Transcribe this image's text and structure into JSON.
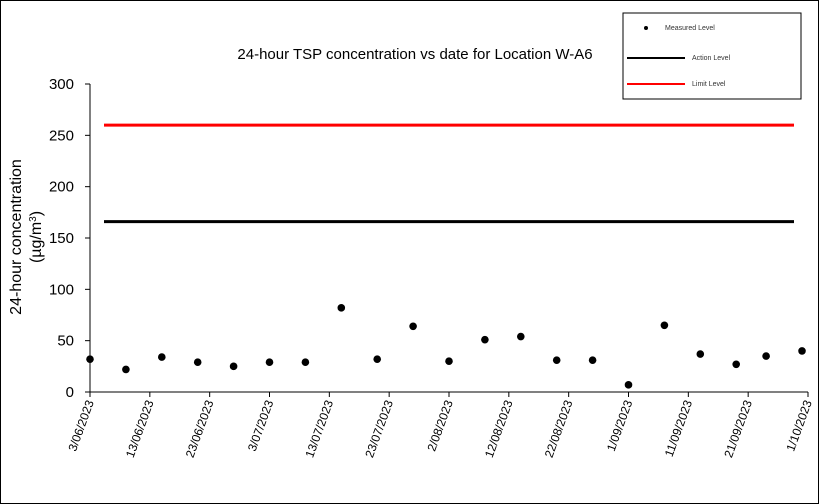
{
  "chart_data": {
    "type": "scatter",
    "title": "24-hour TSP concentration vs date for Location W-A6",
    "ylabel_line1": "24-hour concentration",
    "ylabel_line2_prefix": "(µg/m",
    "ylabel_line2_sup": "3",
    "ylabel_line2_suffix": ")",
    "xlabel": "",
    "ylim": [
      0,
      300
    ],
    "yticks": [
      0,
      50,
      100,
      150,
      200,
      250,
      300
    ],
    "xlim": [
      "2023-06-03",
      "2023-10-01"
    ],
    "xticks": [
      "3/06/2023",
      "13/06/2023",
      "23/06/2023",
      "3/07/2023",
      "13/07/2023",
      "23/07/2023",
      "2/08/2023",
      "12/08/2023",
      "22/08/2023",
      "1/09/2023",
      "11/09/2023",
      "21/09/2023",
      "1/10/2023"
    ],
    "grid": false,
    "legend_position": "top-right",
    "series": [
      {
        "name": "Measured Level",
        "kind": "points",
        "color": "#000000",
        "points": [
          {
            "x": "2023-06-03",
            "y": 32
          },
          {
            "x": "2023-06-09",
            "y": 22
          },
          {
            "x": "2023-06-15",
            "y": 34
          },
          {
            "x": "2023-06-21",
            "y": 29
          },
          {
            "x": "2023-06-27",
            "y": 25
          },
          {
            "x": "2023-07-03",
            "y": 29
          },
          {
            "x": "2023-07-09",
            "y": 29
          },
          {
            "x": "2023-07-15",
            "y": 82
          },
          {
            "x": "2023-07-21",
            "y": 32
          },
          {
            "x": "2023-07-27",
            "y": 64
          },
          {
            "x": "2023-08-02",
            "y": 30
          },
          {
            "x": "2023-08-08",
            "y": 51
          },
          {
            "x": "2023-08-14",
            "y": 54
          },
          {
            "x": "2023-08-20",
            "y": 31
          },
          {
            "x": "2023-08-26",
            "y": 31
          },
          {
            "x": "2023-09-01",
            "y": 7
          },
          {
            "x": "2023-09-07",
            "y": 65
          },
          {
            "x": "2023-09-13",
            "y": 37
          },
          {
            "x": "2023-09-19",
            "y": 27
          },
          {
            "x": "2023-09-24",
            "y": 35
          },
          {
            "x": "2023-09-30",
            "y": 40
          }
        ]
      },
      {
        "name": "Action Level",
        "kind": "hline",
        "color": "#000000",
        "y": 166
      },
      {
        "name": "Limit Level",
        "kind": "hline",
        "color": "#ff0000",
        "y": 260
      }
    ]
  }
}
